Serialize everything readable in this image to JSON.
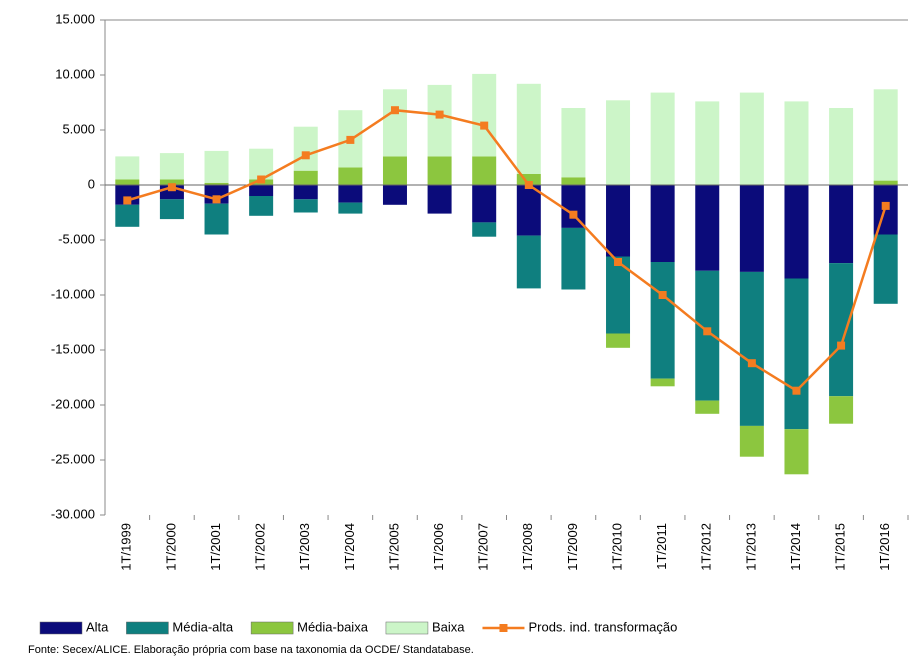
{
  "chart_data": {
    "type": "bar",
    "categories": [
      "1T/1999",
      "1T/2000",
      "1T/2001",
      "1T/2002",
      "1T/2003",
      "1T/2004",
      "1T/2005",
      "1T/2006",
      "1T/2007",
      "1T/2008",
      "1T/2009",
      "1T/2010",
      "1T/2011",
      "1T/2012",
      "1T/2013",
      "1T/2014",
      "1T/2015",
      "1T/2016"
    ],
    "series": [
      {
        "name": "Alta",
        "color": "#0b0b7a",
        "values": [
          -1800,
          -1300,
          -1700,
          -1000,
          -1300,
          -1600,
          -1800,
          -2600,
          -3400,
          -4600,
          -3900,
          -6500,
          -7000,
          -7800,
          -7900,
          -8500,
          -7100,
          -4500
        ]
      },
      {
        "name": "Média-alta",
        "color": "#0f7f7f",
        "values": [
          -2000,
          -1800,
          -2800,
          -1800,
          -1200,
          -1000,
          0,
          0,
          -1300,
          -4800,
          -5600,
          -7000,
          -10600,
          -11800,
          -14000,
          -13700,
          -12100,
          -6300
        ]
      },
      {
        "name": "Média-baixa",
        "color": "#8cc63f",
        "values": [
          500,
          500,
          200,
          500,
          1300,
          1600,
          2600,
          2600,
          2600,
          1000,
          700,
          -1300,
          -700,
          -1200,
          -2800,
          -4100,
          -2500,
          400
        ]
      },
      {
        "name": "Baixa",
        "color": "#ccf5c8",
        "values": [
          2100,
          2400,
          2900,
          2800,
          4000,
          5200,
          6100,
          6500,
          7500,
          8200,
          6300,
          7700,
          8400,
          7600,
          8400,
          7600,
          7000,
          8300
        ]
      },
      {
        "name": "Prods. ind. transformação",
        "type": "line",
        "color": "#f47c20",
        "values": [
          -1400,
          -200,
          -1300,
          500,
          2700,
          4100,
          6800,
          6400,
          5400,
          0,
          -2700,
          -7000,
          -10000,
          -13300,
          -16200,
          -18700,
          -14600,
          -1900
        ]
      }
    ],
    "ylim": [
      -30000,
      15000
    ],
    "yticks": [
      {
        "value": 15000,
        "label": "15.000"
      },
      {
        "value": 10000,
        "label": "10.000"
      },
      {
        "value": 5000,
        "label": "5.000"
      },
      0,
      {
        "value": -5000,
        "label": "-5.000"
      },
      {
        "value": -10000,
        "label": "-10.000"
      },
      {
        "value": -15000,
        "label": "-15.000"
      },
      {
        "value": -20000,
        "label": "-20.000"
      },
      {
        "value": -25000,
        "label": "-25.000"
      },
      {
        "value": -30000,
        "label": "-30.000"
      }
    ],
    "grid": false,
    "source": "Fonte: Secex/ALICE. Elaboração própria com base na taxonomia da OCDE/ Standatabase."
  }
}
